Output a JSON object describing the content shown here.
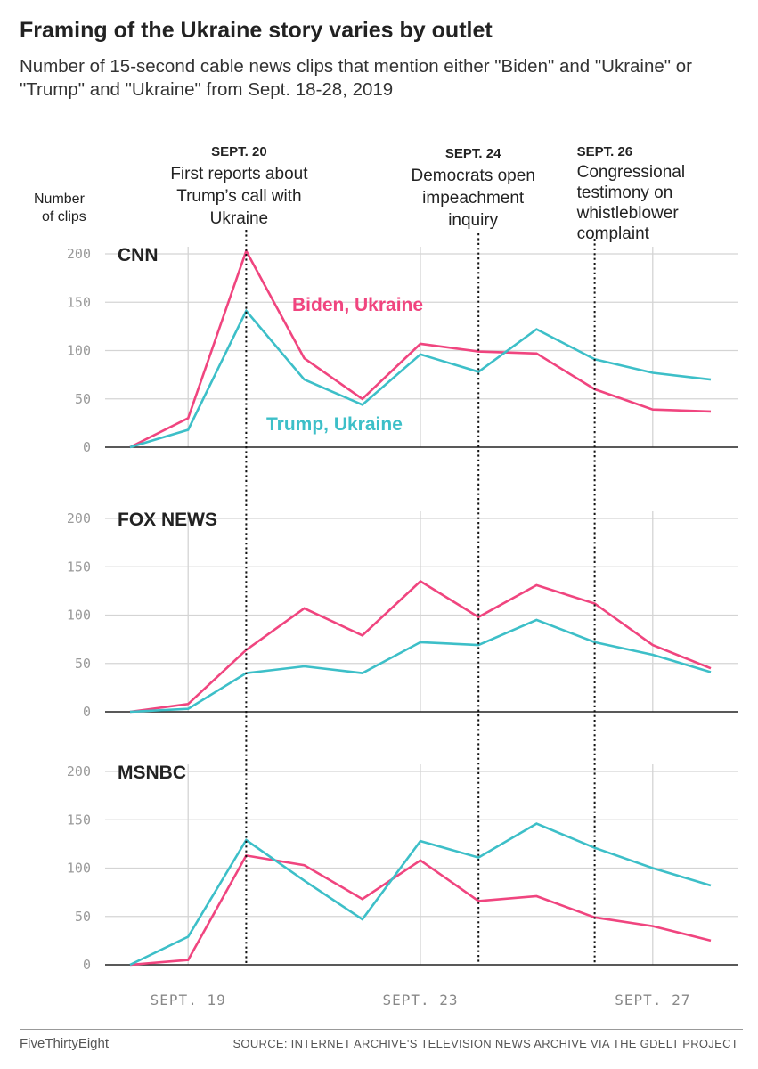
{
  "header": {
    "title": "Framing of the Ukraine story varies by outlet",
    "subtitle": "Number of 15-second cable news clips that mention either \"Biden\" and \"Ukraine\" or \"Trump\" and \"Ukraine\" from Sept. 18-28, 2019"
  },
  "footer": {
    "brand": "FiveThirtyEight",
    "source": "SOURCE: INTERNET ARCHIVE'S TELEVISION NEWS ARCHIVE VIA THE GDELT PROJECT"
  },
  "colors": {
    "biden": "#f0457f",
    "trump": "#3dbfc8",
    "grid": "#d4d4d4",
    "axis": "#222222",
    "event": "#111111"
  },
  "chart_data": {
    "type": "line",
    "title": "Framing of the Ukraine story varies by outlet",
    "ylabel_lines": [
      "Number",
      "of clips"
    ],
    "ylim": [
      0,
      200
    ],
    "yticks": [
      0,
      50,
      100,
      150,
      200
    ],
    "x": [
      18,
      19,
      20,
      21,
      22,
      23,
      24,
      25,
      26,
      27,
      28
    ],
    "x_ticks": [
      {
        "value": 19,
        "label": "SEPT. 19"
      },
      {
        "value": 23,
        "label": "SEPT. 23"
      },
      {
        "value": 27,
        "label": "SEPT. 27"
      }
    ],
    "series_labels": {
      "biden": "Biden, Ukraine",
      "trump": "Trump, Ukraine"
    },
    "events": [
      {
        "value": 20,
        "date": "SEPT. 20",
        "lines": [
          "First reports about",
          "Trump’s call with",
          "Ukraine"
        ]
      },
      {
        "value": 24,
        "date": "SEPT. 24",
        "lines": [
          "Democrats open",
          "impeachment",
          "inquiry"
        ]
      },
      {
        "value": 26,
        "date": "SEPT. 26",
        "lines": [
          "Congressional",
          "testimony on",
          "whistleblower",
          "complaint"
        ]
      }
    ],
    "panels": [
      {
        "name": "CNN",
        "series": [
          {
            "key": "biden",
            "name": "Biden, Ukraine",
            "values": [
              0,
              30,
              203,
              92,
              50,
              107,
              99,
              97,
              60,
              39,
              37
            ]
          },
          {
            "key": "trump",
            "name": "Trump, Ukraine",
            "values": [
              0,
              18,
              141,
              70,
              44,
              96,
              78,
              122,
              91,
              77,
              70
            ]
          }
        ]
      },
      {
        "name": "FOX NEWS",
        "series": [
          {
            "key": "biden",
            "name": "Biden, Ukraine",
            "values": [
              0,
              8,
              64,
              107,
              79,
              135,
              98,
              131,
              112,
              69,
              45
            ]
          },
          {
            "key": "trump",
            "name": "Trump, Ukraine",
            "values": [
              0,
              3,
              40,
              47,
              40,
              72,
              69,
              95,
              72,
              59,
              41
            ]
          }
        ]
      },
      {
        "name": "MSNBC",
        "series": [
          {
            "key": "biden",
            "name": "Biden, Ukraine",
            "values": [
              0,
              5,
              113,
              103,
              68,
              108,
              66,
              71,
              49,
              40,
              25
            ]
          },
          {
            "key": "trump",
            "name": "Trump, Ukraine",
            "values": [
              0,
              29,
              129,
              87,
              47,
              128,
              111,
              146,
              121,
              100,
              82
            ]
          }
        ]
      }
    ]
  }
}
